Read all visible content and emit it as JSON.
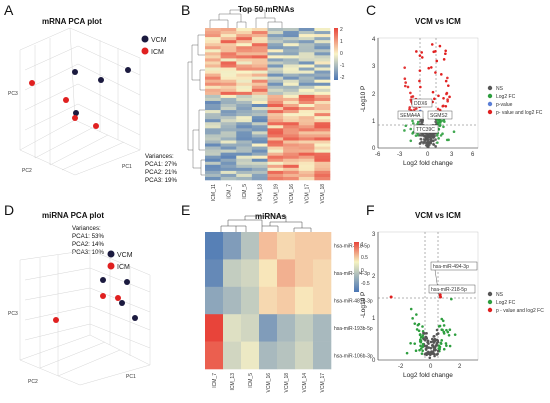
{
  "panel_letters": {
    "A": "A",
    "B": "B",
    "C": "C",
    "D": "D",
    "E": "E",
    "F": "F"
  },
  "panelA": {
    "title": "mRNA PCA plot",
    "legend": [
      {
        "label": "VCM",
        "color": "#1b1a3f"
      },
      {
        "label": "ICM",
        "color": "#e02020"
      }
    ],
    "variances_title": "Variances:",
    "variances": [
      "PCA1: 27%",
      "PCA2: 21%",
      "PCA3: 19%"
    ],
    "axis_labels": {
      "pc1": "PC1",
      "pc2": "PC2",
      "pc3": "PC3"
    }
  },
  "panelB": {
    "title": "Top 50 mRNAs",
    "samples": [
      "ICM_11",
      "ICM_7",
      "ICM_5",
      "ICM_13",
      "VCM_19",
      "VCM_16",
      "VCM_17",
      "VCM_18"
    ],
    "colorbar_ticks": [
      "2",
      "1",
      "0",
      "-1",
      "-2"
    ]
  },
  "panelC": {
    "title": "VCM vs ICM",
    "xlabel": "Log2 fold change",
    "ylabel": "-Log10 P",
    "xticks": [
      "-6",
      "-3",
      "0",
      "3",
      "6"
    ],
    "yticks": [
      "0",
      "1",
      "2",
      "3",
      "4"
    ],
    "labels": [
      "DDX6",
      "SEMA4A",
      "SGMS2",
      "TTC39C"
    ],
    "legend": [
      {
        "label": "NS",
        "color": "#555555"
      },
      {
        "label": "Log2 FC",
        "color": "#2e9e3f"
      },
      {
        "label": "p-value",
        "color": "#5b7fd6"
      },
      {
        "label": "p- value and log2 FC",
        "color": "#e02020"
      }
    ]
  },
  "panelD": {
    "title": "miRNA PCA plot",
    "legend": [
      {
        "label": "VCM",
        "color": "#1b1a3f"
      },
      {
        "label": "ICM",
        "color": "#e02020"
      }
    ],
    "variances_title": "Variances:",
    "variances": [
      "PCA1: 53%",
      "PCA2: 14%",
      "PCA3: 10%"
    ],
    "axis_labels": {
      "pc1": "PC1",
      "pc2": "PC2",
      "pc3": "PC3"
    }
  },
  "panelE": {
    "title": "miRNAs",
    "rows": [
      "hsa-miR-218-5p",
      "hsa-miR-494-3p",
      "hsa-miR-487b-3p",
      "hsa-miR-193b-5p",
      "hsa-miR-106b-3p"
    ],
    "cols": [
      "ICM_7",
      "ICM_13",
      "ICM_5",
      "VCM_16",
      "VCM_18",
      "VCM_14",
      "VCM_17"
    ],
    "colorbar_ticks": [
      "1",
      "0.5",
      "0",
      "-0.5"
    ]
  },
  "panelF": {
    "title": "VCM vs ICM",
    "xlabel": "Log2 fold change",
    "ylabel": "-Log10 P",
    "xticks": [
      "-2",
      "0",
      "2"
    ],
    "yticks": [
      "0",
      "1",
      "2",
      "3"
    ],
    "labels": [
      "hsa-miR-494-3p",
      "hsa-miR-218-5p"
    ],
    "legend": [
      {
        "label": "NS",
        "color": "#555555"
      },
      {
        "label": "Log2 FC",
        "color": "#2e9e3f"
      },
      {
        "label": "p - value and log2 FC",
        "color": "#e02020"
      }
    ]
  },
  "chart_data": [
    {
      "type": "scatter",
      "title": "mRNA PCA plot",
      "series": [
        {
          "name": "VCM",
          "points": [
            [
              0.55,
              0.22
            ],
            [
              0.68,
              0.27
            ],
            [
              0.83,
              0.25
            ],
            [
              0.4,
              0.34
            ]
          ]
        },
        {
          "name": "ICM",
          "points": [
            [
              0.18,
              0.39
            ],
            [
              0.42,
              0.59
            ],
            [
              0.53,
              0.63
            ],
            [
              0.35,
              0.47
            ]
          ]
        }
      ]
    },
    {
      "type": "heatmap",
      "title": "Top 50 mRNAs",
      "columns": [
        "ICM_11",
        "ICM_7",
        "ICM_5",
        "ICM_13",
        "VCM_19",
        "VCM_16",
        "VCM_17",
        "VCM_18"
      ],
      "row_count": 50
    },
    {
      "type": "scatter",
      "title": "VCM vs ICM",
      "xlabel": "Log2 fold change",
      "ylabel": "-Log10 P",
      "xlim": [
        -6,
        6
      ],
      "ylim": [
        0,
        4
      ],
      "labeled_points": [
        "DDX6",
        "SEMA4A",
        "SGMS2",
        "TTC39C"
      ]
    },
    {
      "type": "scatter",
      "title": "miRNA PCA plot",
      "series": [
        {
          "name": "VCM",
          "points": [
            [
              0.62,
              0.36
            ],
            [
              0.77,
              0.38
            ],
            [
              0.74,
              0.52
            ],
            [
              0.82,
              0.58
            ]
          ]
        },
        {
          "name": "ICM",
          "points": [
            [
              0.34,
              0.6
            ],
            [
              0.62,
              0.44
            ],
            [
              0.72,
              0.45
            ]
          ]
        }
      ]
    },
    {
      "type": "heatmap",
      "title": "miRNAs",
      "rows": [
        "hsa-miR-218-5p",
        "hsa-miR-494-3p",
        "hsa-miR-487b-3p",
        "hsa-miR-193b-5p",
        "hsa-miR-106b-3p"
      ],
      "columns": [
        "ICM_7",
        "ICM_13",
        "ICM_5",
        "VCM_16",
        "VCM_18",
        "VCM_14",
        "VCM_17"
      ],
      "values": [
        [
          -1.2,
          -0.9,
          -0.5,
          0.4,
          0.2,
          0.3,
          0.3
        ],
        [
          -1.1,
          -0.4,
          -0.3,
          0.1,
          0.5,
          0.3,
          0.2
        ],
        [
          -0.8,
          -0.6,
          -0.4,
          0.2,
          0.3,
          0.1,
          0.2
        ],
        [
          1.3,
          -0.2,
          -0.3,
          -0.9,
          -0.6,
          -0.4,
          -0.6
        ],
        [
          1.1,
          -0.3,
          -0.1,
          -0.6,
          -0.5,
          -0.3,
          -0.6
        ]
      ]
    },
    {
      "type": "scatter",
      "title": "VCM vs ICM",
      "xlabel": "Log2 fold change",
      "ylabel": "-Log10 P",
      "xlim": [
        -3,
        3
      ],
      "ylim": [
        0,
        3
      ],
      "labeled_points": [
        "hsa-miR-494-3p",
        "hsa-miR-218-5p"
      ]
    }
  ]
}
